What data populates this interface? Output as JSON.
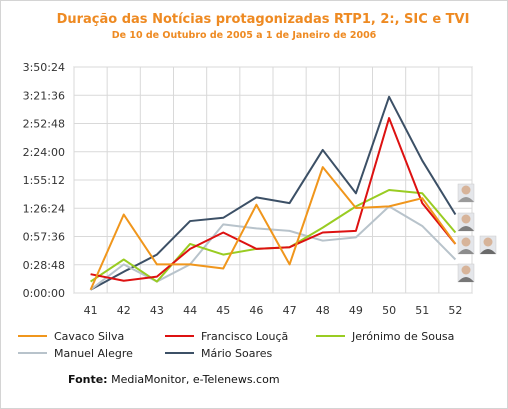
{
  "chart_data": {
    "type": "line",
    "title": "Duração das Notícias protagonizadas RTP1, 2:, SIC e TVI",
    "subtitle": "De 10 de Outubro de 2005 a 1 de Janeiro de 2006",
    "x": [
      41,
      42,
      43,
      44,
      45,
      46,
      47,
      48,
      49,
      50,
      51,
      52
    ],
    "ytick_labels": [
      "0:00:00",
      "0:28:48",
      "0:57:36",
      "1:26:24",
      "1:55:12",
      "2:24:00",
      "2:52:48",
      "3:21:36",
      "3:50:24"
    ],
    "ylim_seconds": [
      0,
      13824
    ],
    "grid": true,
    "legend_position": "bottom",
    "series": [
      {
        "name": "Cavaco Silva",
        "color": "#f0961c",
        "values_seconds": [
          200,
          4800,
          1750,
          1750,
          1500,
          5400,
          1750,
          7700,
          5200,
          5300,
          5800,
          3000
        ]
      },
      {
        "name": "Francisco Louçã",
        "color": "#dd1111",
        "values_seconds": [
          1150,
          750,
          1000,
          2700,
          3700,
          2700,
          2800,
          3700,
          3800,
          10700,
          5500,
          3000
        ]
      },
      {
        "name": "Jerónimo de Sousa",
        "color": "#99cc22",
        "values_seconds": [
          700,
          2050,
          700,
          3000,
          2350,
          2700,
          2800,
          4000,
          5300,
          6300,
          6100,
          3700
        ]
      },
      {
        "name": "Manuel Alegre",
        "color": "#b8c3cb",
        "values_seconds": [
          200,
          1750,
          700,
          1750,
          4200,
          3950,
          3800,
          3200,
          3400,
          5300,
          4100,
          2050
        ]
      },
      {
        "name": "Mário Soares",
        "color": "#3c5066",
        "values_seconds": [
          200,
          1300,
          2350,
          4400,
          4600,
          5850,
          5500,
          8750,
          6100,
          12000,
          8100,
          4800
        ]
      }
    ]
  },
  "source": {
    "label": "Fonte:",
    "text": " MediaMonitor, e-Telenews.com"
  }
}
